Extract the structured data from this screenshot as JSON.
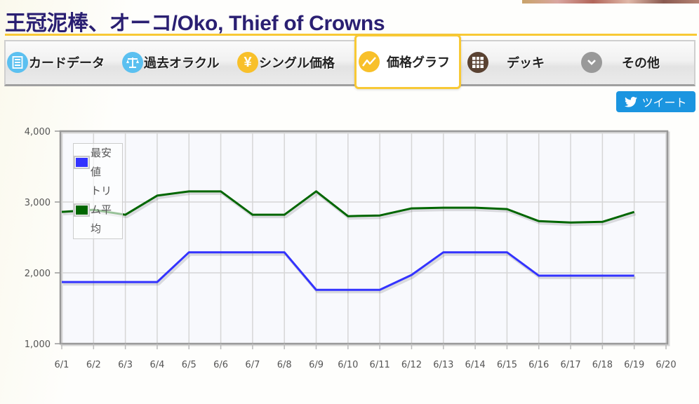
{
  "page": {
    "title": "王冠泥棒、オーコ/Oko, Thief of Crowns"
  },
  "nav": {
    "tabs": [
      {
        "label": "カードデータ",
        "icon": "card-icon",
        "icon_glyph": "▤",
        "icon_color": "#5bc0f0",
        "active": false
      },
      {
        "label": "過去オラクル",
        "icon": "scales-icon",
        "icon_glyph": "⚖",
        "icon_color": "#5bc0f0",
        "active": false
      },
      {
        "label": "シングル価格",
        "icon": "yen-icon",
        "icon_glyph": "¥",
        "icon_color": "#f8c02a",
        "active": false
      },
      {
        "label": "価格グラフ",
        "icon": "line-chart-icon",
        "icon_glyph": "〰",
        "icon_color": "#f8c02a",
        "active": true
      },
      {
        "label": "デッキ",
        "icon": "grid-icon",
        "icon_glyph": "▦",
        "icon_color": "#5a4232",
        "active": false
      },
      {
        "label": "その他",
        "icon": "chevron-down-icon",
        "icon_glyph": "⌄",
        "icon_color": "#999999",
        "active": false
      }
    ]
  },
  "tweet": {
    "label": "ツイート",
    "icon": "twitter-bird-icon",
    "color": "#1b95e0"
  },
  "chart_data": {
    "type": "line",
    "title": "",
    "xlabel": "",
    "ylabel": "",
    "x": [
      "6/1",
      "6/2",
      "6/3",
      "6/4",
      "6/5",
      "6/6",
      "6/7",
      "6/8",
      "6/9",
      "6/10",
      "6/11",
      "6/12",
      "6/13",
      "6/14",
      "6/15",
      "6/16",
      "6/17",
      "6/18",
      "6/19",
      "6/20"
    ],
    "y_ticks": [
      "1,000",
      "2,000",
      "3,000",
      "4,000"
    ],
    "ylim": [
      1000,
      4000
    ],
    "grid": true,
    "legend_position": "top-left-inside",
    "series": [
      {
        "name": "最安値",
        "color": "#3333ff",
        "values": [
          1870,
          1870,
          1870,
          1870,
          2290,
          2290,
          2290,
          2290,
          1760,
          1760,
          1760,
          1970,
          2290,
          2290,
          2290,
          1960,
          1960,
          1960,
          1960,
          null
        ]
      },
      {
        "name": "トリム平均",
        "color": "#006600",
        "values": [
          2860,
          2890,
          2820,
          3090,
          3150,
          3150,
          2820,
          2820,
          3150,
          2800,
          2810,
          2910,
          2920,
          2920,
          2900,
          2730,
          2710,
          2720,
          2860,
          null
        ]
      }
    ]
  }
}
